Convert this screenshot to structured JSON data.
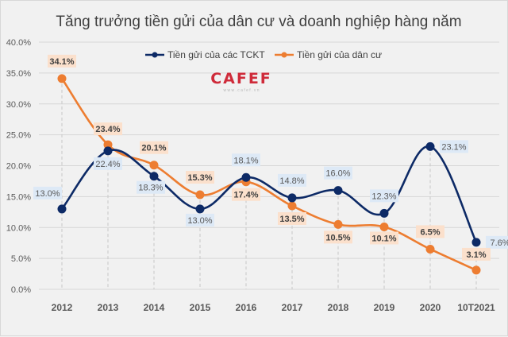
{
  "chart_data": {
    "type": "line",
    "title": "Tăng trưởng tiền gửi của dân cư và doanh nghiệp hàng năm",
    "xlabel": "",
    "ylabel": "",
    "categories": [
      "2012",
      "2013",
      "2014",
      "2015",
      "2016",
      "2017",
      "2018",
      "2019",
      "2020",
      "10T2021"
    ],
    "ylim": [
      0,
      40
    ],
    "yticks": [
      "0.0%",
      "5.0%",
      "10.0%",
      "15.0%",
      "20.0%",
      "25.0%",
      "30.0%",
      "35.0%",
      "40.0%"
    ],
    "ytick_values": [
      0,
      5,
      10,
      15,
      20,
      25,
      30,
      35,
      40
    ],
    "grid": true,
    "legend_position": "top-center",
    "series": [
      {
        "name": "Tiền gửi của các TCKT",
        "color": "#0d2a66",
        "label_bg": "#dde9f6",
        "values": [
          13.0,
          22.4,
          18.3,
          13.0,
          18.1,
          14.8,
          16.0,
          12.3,
          23.1,
          7.6
        ],
        "labels": [
          "13.0%",
          "22.4%",
          "18.3%",
          "13.0%",
          "18.1%",
          "14.8%",
          "16.0%",
          "12.3%",
          "23.1%",
          "7.6%"
        ]
      },
      {
        "name": "Tiền gửi của dân cư",
        "color": "#ed7d31",
        "label_bg": "#fbe0cc",
        "values": [
          34.1,
          23.4,
          20.1,
          15.3,
          17.4,
          13.5,
          10.5,
          10.1,
          6.5,
          3.1
        ],
        "labels": [
          "34.1%",
          "23.4%",
          "20.1%",
          "15.3%",
          "17.4%",
          "13.5%",
          "10.5%",
          "10.1%",
          "6.5%",
          "3.1%"
        ]
      }
    ]
  },
  "watermark": {
    "logo": "CAFEF",
    "url": "w w w . c a f e f . v n"
  }
}
